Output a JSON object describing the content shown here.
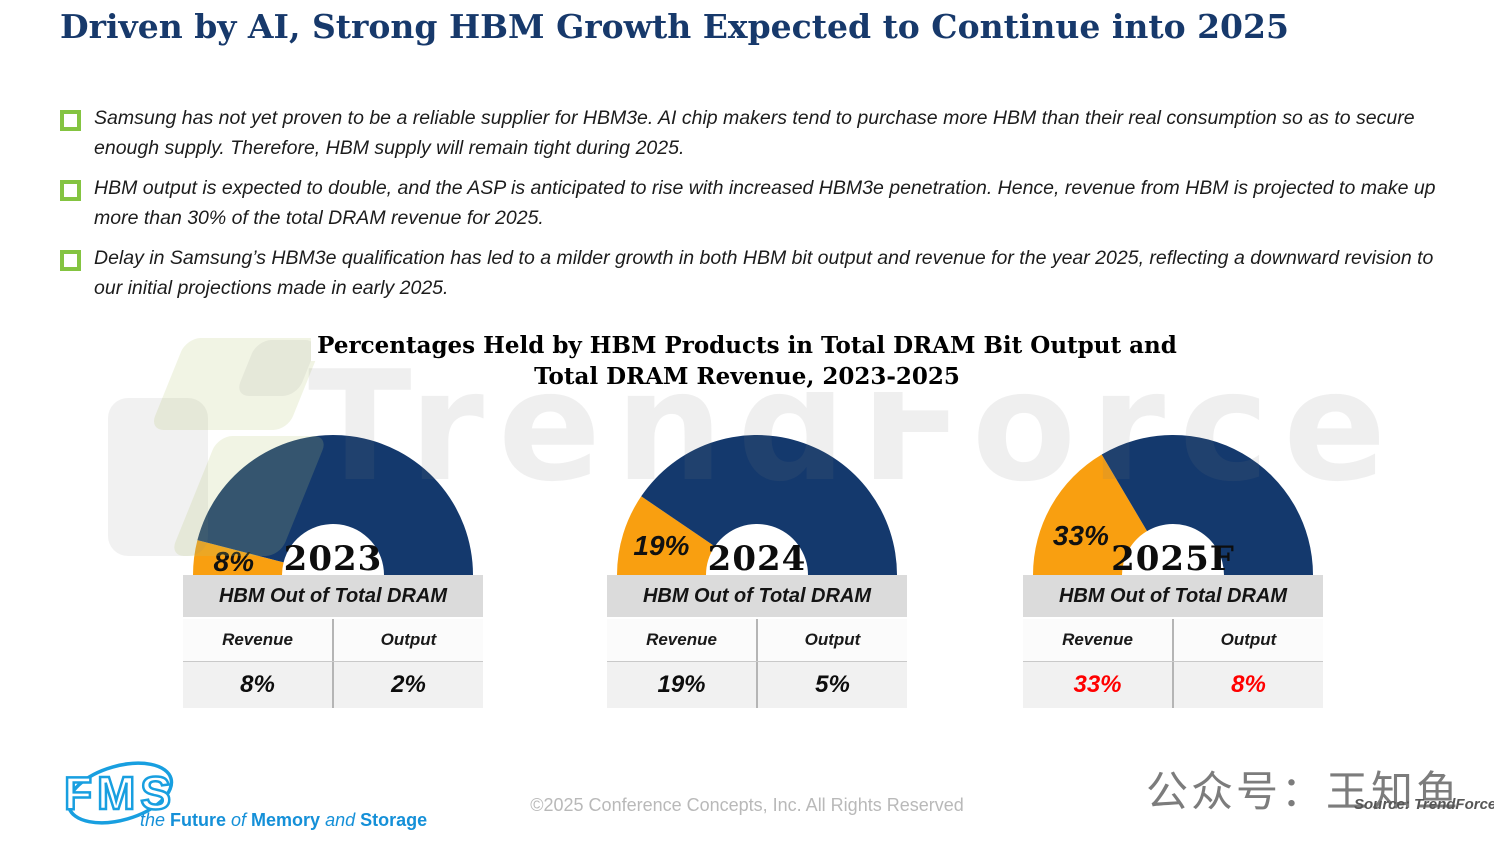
{
  "slide": {
    "title": "Driven by AI, Strong HBM Growth Expected to Continue into 2025",
    "bullets": [
      "Samsung has not yet proven to be a reliable supplier for HBM3e. AI chip makers tend to purchase more HBM than their real consumption so as to secure enough supply. Therefore, HBM supply will remain tight during 2025.",
      "HBM output is expected to double, and the ASP is anticipated to rise with increased HBM3e penetration. Hence, revenue from HBM is projected to make up more than 30% of the total DRAM revenue for 2025.",
      "Delay in Samsung’s HBM3e qualification has led to a milder growth in both HBM bit output and revenue for the year 2025,  reflecting a downward revision to our initial projections made in early 2025."
    ],
    "watermark": {
      "text": "TrendForce"
    },
    "footer": {
      "copyright": "©2025 Conference Concepts, Inc. All Rights Reserved",
      "wechat": "公众号：王知鱼",
      "source": "Source: TrendForce",
      "fms": {
        "logo_text": "FMS",
        "tagline_parts": [
          {
            "text": "the ",
            "style": "i"
          },
          {
            "text": "Future",
            "style": "b"
          },
          {
            "text": " of ",
            "style": "i"
          },
          {
            "text": "Memory",
            "style": "b"
          },
          {
            "text": " and ",
            "style": "i"
          },
          {
            "text": "Storage",
            "style": "b"
          }
        ]
      }
    }
  },
  "chart_data": {
    "type": "pie",
    "subtype": "semicircle-donut-gauge",
    "title": "Percentages Held by HBM Products in Total DRAM Bit Output and Total DRAM Revenue, 2023-2025",
    "title_lines": [
      "Percentages Held by HBM Products in Total DRAM Bit Output and",
      "Total DRAM Revenue, 2023-2025"
    ],
    "categories": [
      "2023",
      "2024",
      "2025F"
    ],
    "series": [
      {
        "name": "HBM Revenue share of Total DRAM (%)",
        "values": [
          8,
          19,
          33
        ]
      },
      {
        "name": "HBM Output share of Total DRAM (%)",
        "values": [
          2,
          5,
          8
        ]
      }
    ],
    "colors": {
      "slice": "#F99F10",
      "rest": "#14396D",
      "highlight_value": "#FF0000",
      "normal_value": "#0d0d0d"
    },
    "legend": "none",
    "gauges": [
      {
        "year": "2023",
        "gauge_pct": 8,
        "slice_label": "8%",
        "highlight": false,
        "table": {
          "header": "HBM Out of Total DRAM",
          "columns": [
            "Revenue",
            "Output"
          ],
          "values": [
            "8%",
            "2%"
          ]
        }
      },
      {
        "year": "2024",
        "gauge_pct": 19,
        "slice_label": "19%",
        "highlight": false,
        "table": {
          "header": "HBM Out of Total DRAM",
          "columns": [
            "Revenue",
            "Output"
          ],
          "values": [
            "19%",
            "5%"
          ]
        }
      },
      {
        "year": "2025F",
        "gauge_pct": 33,
        "slice_label": "33%",
        "highlight": true,
        "table": {
          "header": "HBM Out of Total DRAM",
          "columns": [
            "Revenue",
            "Output"
          ],
          "values": [
            "33%",
            "8%"
          ]
        }
      }
    ]
  }
}
